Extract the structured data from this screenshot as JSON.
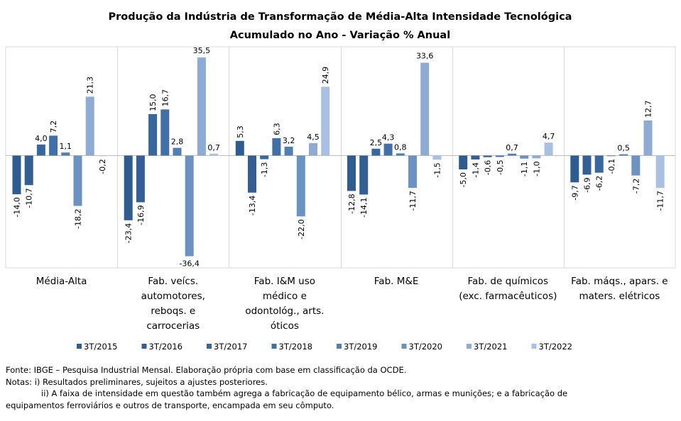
{
  "chart_data": {
    "type": "bar",
    "title": "Produção da Indústria de Transformação de Média-Alta Intensidade Tecnológica",
    "subtitle": "Acumulado no Ano - Variação % Anual",
    "categories": [
      "Média-Alta",
      "Fab. veícs. automotores, reboqs. e carrocerias",
      "Fab. I&M uso médico e odontológ., arts. óticos",
      "Fab. M&E",
      "Fab. de químicos (exc. farmacêuticos)",
      "Fab. máqs., apars. e maters. elétricos"
    ],
    "category_lines": [
      [
        "Média-Alta"
      ],
      [
        "Fab. veícs.",
        "automotores,",
        "reboqs. e",
        "carrocerias"
      ],
      [
        "Fab. I&M uso",
        "médico e",
        "odontológ., arts.",
        "óticos"
      ],
      [
        "Fab. M&E"
      ],
      [
        "Fab. de químicos",
        "(exc. farmacêuticos)"
      ],
      [
        "Fab. máqs., apars. e",
        "maters. elétricos"
      ]
    ],
    "series": [
      {
        "name": "3T/2015",
        "color": "#2e5c8f",
        "values": [
          -14.0,
          -23.4,
          5.3,
          -12.8,
          -5.0,
          -9.7
        ],
        "labels": [
          "-14,0",
          "-23,4",
          "5,3",
          "-12,8",
          "-5,0",
          "-9,7"
        ]
      },
      {
        "name": "3T/2016",
        "color": "#335f94",
        "values": [
          -10.7,
          -16.9,
          -13.4,
          -14.1,
          -1.4,
          -6.9
        ],
        "labels": [
          "-10,7",
          "-16,9",
          "-13,4",
          "-14,1",
          "-1,4",
          "-6,9"
        ]
      },
      {
        "name": "3T/2017",
        "color": "#38669e",
        "values": [
          4.0,
          15.0,
          -1.3,
          2.5,
          -0.6,
          -6.2
        ],
        "labels": [
          "4,0",
          "15,0",
          "-1,3",
          "2,5",
          "-0,6",
          "-6,2"
        ]
      },
      {
        "name": "3T/2018",
        "color": "#416fa8",
        "values": [
          7.2,
          16.7,
          6.3,
          4.3,
          -0.5,
          -0.1
        ],
        "labels": [
          "7,2",
          "16,7",
          "6,3",
          "4,3",
          "-0,5",
          "-0,1"
        ]
      },
      {
        "name": "3T/2019",
        "color": "#527eb2",
        "values": [
          1.1,
          2.8,
          3.2,
          0.8,
          0.7,
          0.5
        ],
        "labels": [
          "1,1",
          "2,8",
          "3,2",
          "0,8",
          "0,7",
          "0,5"
        ]
      },
      {
        "name": "3T/2020",
        "color": "#6b92c1",
        "values": [
          -18.2,
          -36.4,
          -22.0,
          -11.7,
          -1.1,
          -7.2
        ],
        "labels": [
          "-18,2",
          "-36,4",
          "-22,0",
          "-11,7",
          "-1,1",
          "-7,2"
        ]
      },
      {
        "name": "3T/2021",
        "color": "#8eabd3",
        "values": [
          21.3,
          35.5,
          4.5,
          33.6,
          -1.0,
          12.7
        ],
        "labels": [
          "21,3",
          "35,5",
          "4,5",
          "33,6",
          "-1,0",
          "12,7"
        ]
      },
      {
        "name": "3T/2022",
        "color": "#a9c0e2",
        "values": [
          -0.2,
          0.7,
          24.9,
          -1.5,
          4.7,
          -11.7
        ],
        "labels": [
          "-0,2",
          "0,7",
          "24,9",
          "-1,5",
          "4,7",
          "-11,7"
        ]
      }
    ],
    "ylim": [
      -40,
      40
    ],
    "legend_position": "bottom",
    "grid": false
  },
  "notes": {
    "source": "Fonte: IBGE – Pesquisa Industrial Mensal. Elaboração própria com base em classificação da OCDE.",
    "note_i": "Notas: i) Resultados preliminares, sujeitos a ajustes posteriores.",
    "note_ii": "ii) A faixa de intensidade em questão também agrega a fabricação de equipamento bélico, armas e munições; e a fabricação de",
    "note_ii_cont": "equipamentos ferroviários e outros de transporte, encampada em seu cômputo."
  }
}
